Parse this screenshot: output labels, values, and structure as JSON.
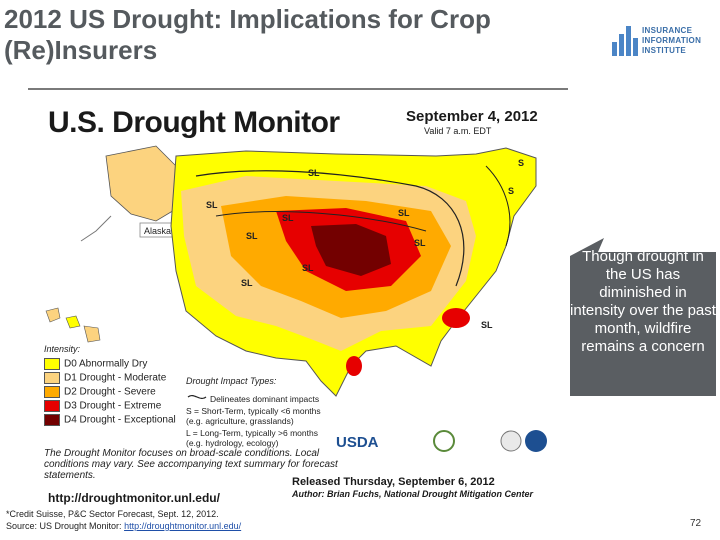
{
  "slide": {
    "title": "2012 US Drought: Implications for Crop (Re)Insurers",
    "page_number": "72"
  },
  "logo": {
    "line1": "INSURANCE",
    "line2": "INFORMATION",
    "line3": "INSTITUTE",
    "brand_color": "#4b85c6"
  },
  "map": {
    "heading": "U.S. Drought Monitor",
    "date": "September 4, 2012",
    "valid": "Valid 7 a.m. EDT",
    "alaska_label": "Alaska",
    "impact_labels": [
      "SL",
      "SL",
      "SL",
      "SL",
      "SL",
      "SL",
      "SL",
      "SL",
      "S",
      "S",
      "SL"
    ],
    "legend_title": "Intensity:",
    "legend": [
      {
        "label": "D0 Abnormally Dry",
        "color": "#ffff00"
      },
      {
        "label": "D1 Drought - Moderate",
        "color": "#fcd37f"
      },
      {
        "label": "D2 Drought - Severe",
        "color": "#ffaa00"
      },
      {
        "label": "D3 Drought - Extreme",
        "color": "#e60000"
      },
      {
        "label": "D4 Drought - Exceptional",
        "color": "#730000"
      }
    ],
    "impact_title": "Drought Impact Types:",
    "impact_lines": [
      "Delineates dominant impacts",
      "S = Short-Term, typically <6 months",
      "(e.g. agriculture, grasslands)",
      "L = Long-Term, typically >6 months",
      "(e.g. hydrology, ecology)"
    ],
    "focus_note": "The Drought Monitor focuses on broad-scale conditions. Local conditions may vary. See accompanying text summary for forecast statements.",
    "url": "http://droughtmonitor.unl.edu/",
    "released": "Released Thursday, September 6, 2012",
    "author": "Author: Brian Fuchs, National Drought Mitigation Center",
    "usda": "USDA"
  },
  "callout": {
    "text": "Though drought in the US has diminished in intensity over the past month, wildfire remains a concern",
    "color": "#5a5e62"
  },
  "footnote": {
    "line1": "*Credit Suisse, P&C Sector Forecast, Sept. 12, 2012.",
    "source_prefix": "Source: US Drought Monitor: ",
    "source_link": "http://droughtmonitor.unl.edu/"
  }
}
